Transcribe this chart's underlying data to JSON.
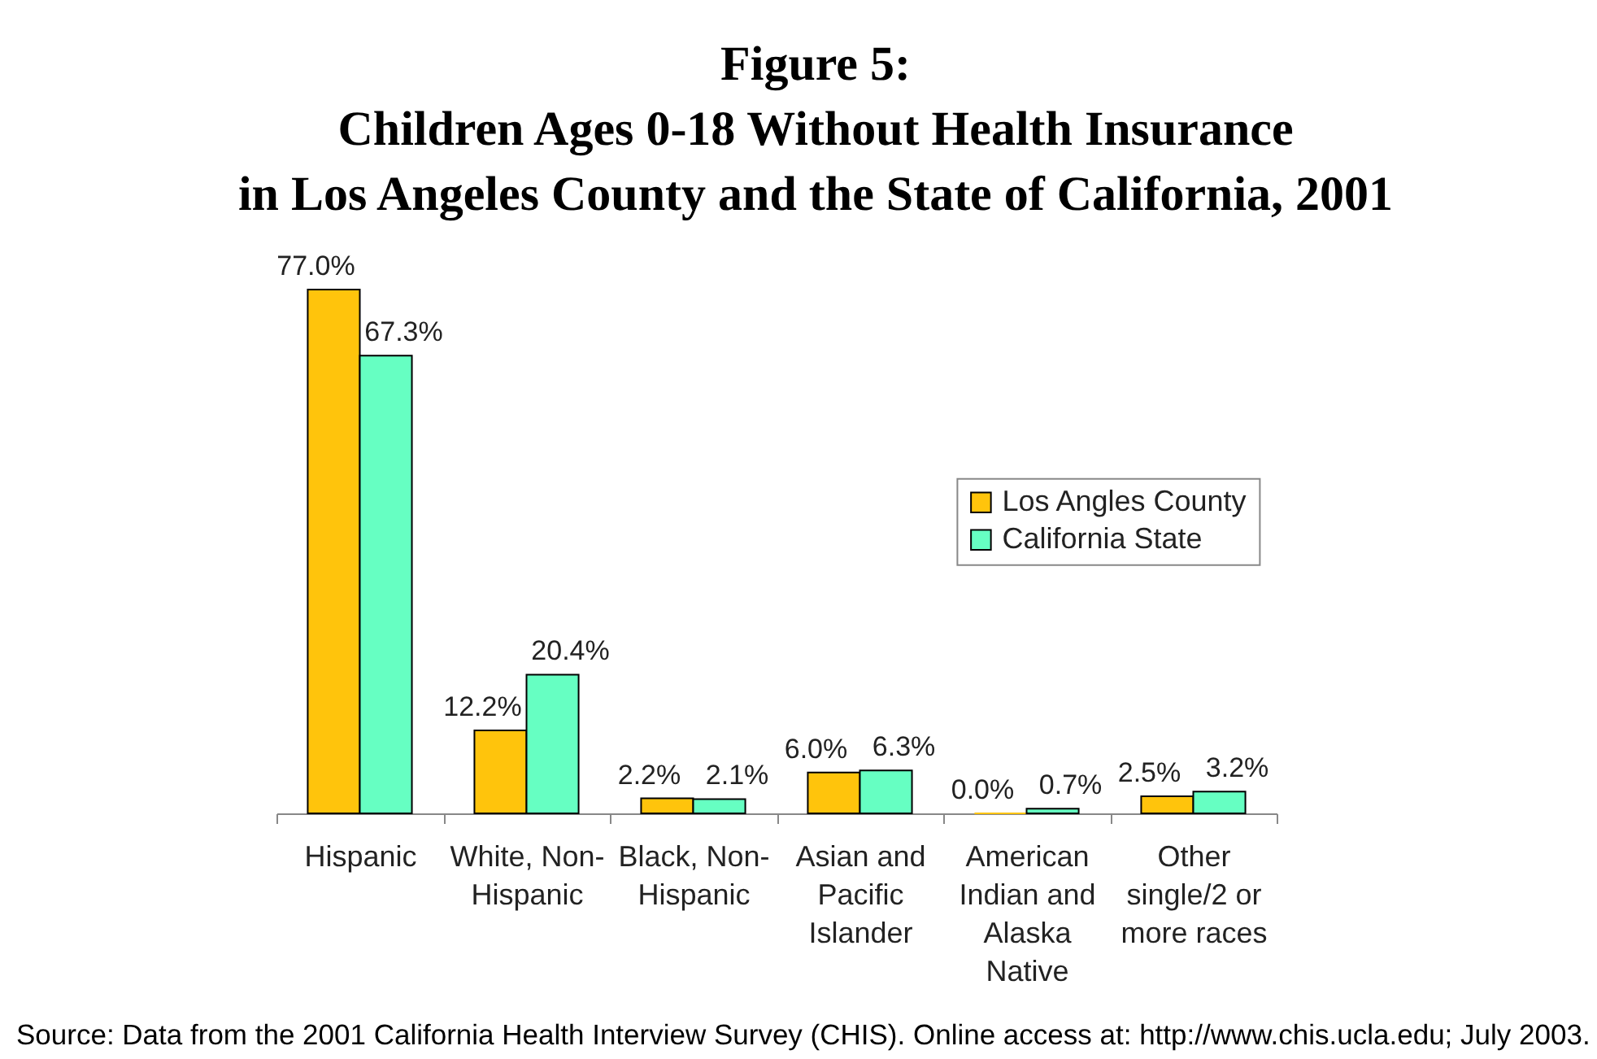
{
  "chart_data": {
    "type": "bar",
    "title": "Figure 5:\nChildren Ages 0-18 Without Health Insurance\nin Los Angeles County and the State of California, 2001",
    "categories": [
      "Hispanic",
      "White, Non-Hispanic",
      "Black, Non-Hispanic",
      "Asian and Pacific Islander",
      "American Indian and Alaska Native",
      "Other single/2 or more races"
    ],
    "series": [
      {
        "name": "Los Angles County",
        "color": "#ffc40c",
        "values": [
          77.0,
          12.2,
          2.2,
          6.0,
          0.0,
          2.5
        ],
        "value_labels": [
          "77.0%",
          "12.2%",
          "2.2%",
          "6.0%",
          "0.0%",
          "2.5%"
        ]
      },
      {
        "name": "California State",
        "color": "#66ffc2",
        "values": [
          67.3,
          20.4,
          2.1,
          6.3,
          0.7,
          3.2
        ],
        "value_labels": [
          "67.3%",
          "20.4%",
          "2.1%",
          "6.3%",
          "0.7%",
          "3.2%"
        ]
      }
    ],
    "legend": "right",
    "tick_labels": "x",
    "annotations": [
      "Source: Data from the 2001 California Health Interview Survey (CHIS). Online access at: http://www.chis.ucla.edu; July 2003."
    ]
  }
}
